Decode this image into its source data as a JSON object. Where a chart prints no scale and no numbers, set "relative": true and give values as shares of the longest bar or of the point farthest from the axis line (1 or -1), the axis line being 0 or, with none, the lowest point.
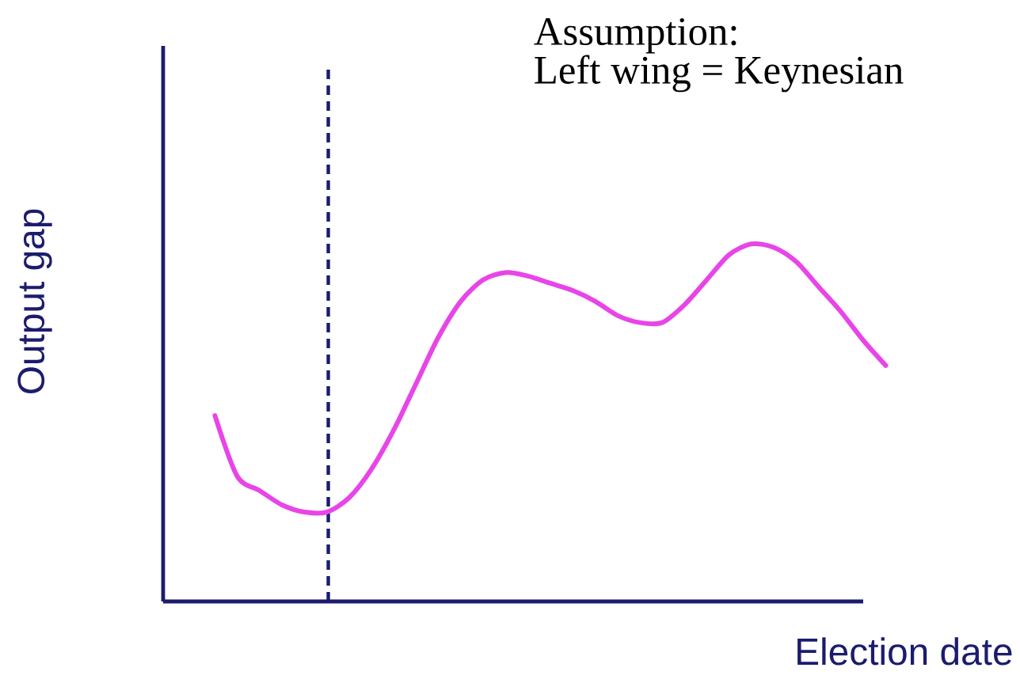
{
  "chart_data": {
    "type": "line",
    "relative": true,
    "categories": [
      null,
      null,
      null,
      null,
      null,
      null,
      null,
      null,
      null,
      null,
      null,
      null,
      null,
      null,
      null,
      null,
      null,
      null,
      null,
      null,
      null,
      null,
      null,
      null,
      null,
      null,
      null,
      null,
      null,
      null,
      null
    ],
    "values": [
      0.52,
      0.35,
      0.31,
      0.27,
      0.25,
      0.25,
      0.29,
      0.37,
      0.48,
      0.61,
      0.74,
      0.84,
      0.9,
      0.92,
      0.91,
      0.89,
      0.87,
      0.84,
      0.8,
      0.78,
      0.78,
      0.83,
      0.9,
      0.97,
      1,
      0.99,
      0.95,
      0.88,
      0.81,
      0.73,
      0.66
    ],
    "color": "#e845e8",
    "xlabel": "Election date",
    "ylabel": "Output gap",
    "annotations": [
      "Assumption:",
      "Left wing = Keynesian"
    ]
  }
}
